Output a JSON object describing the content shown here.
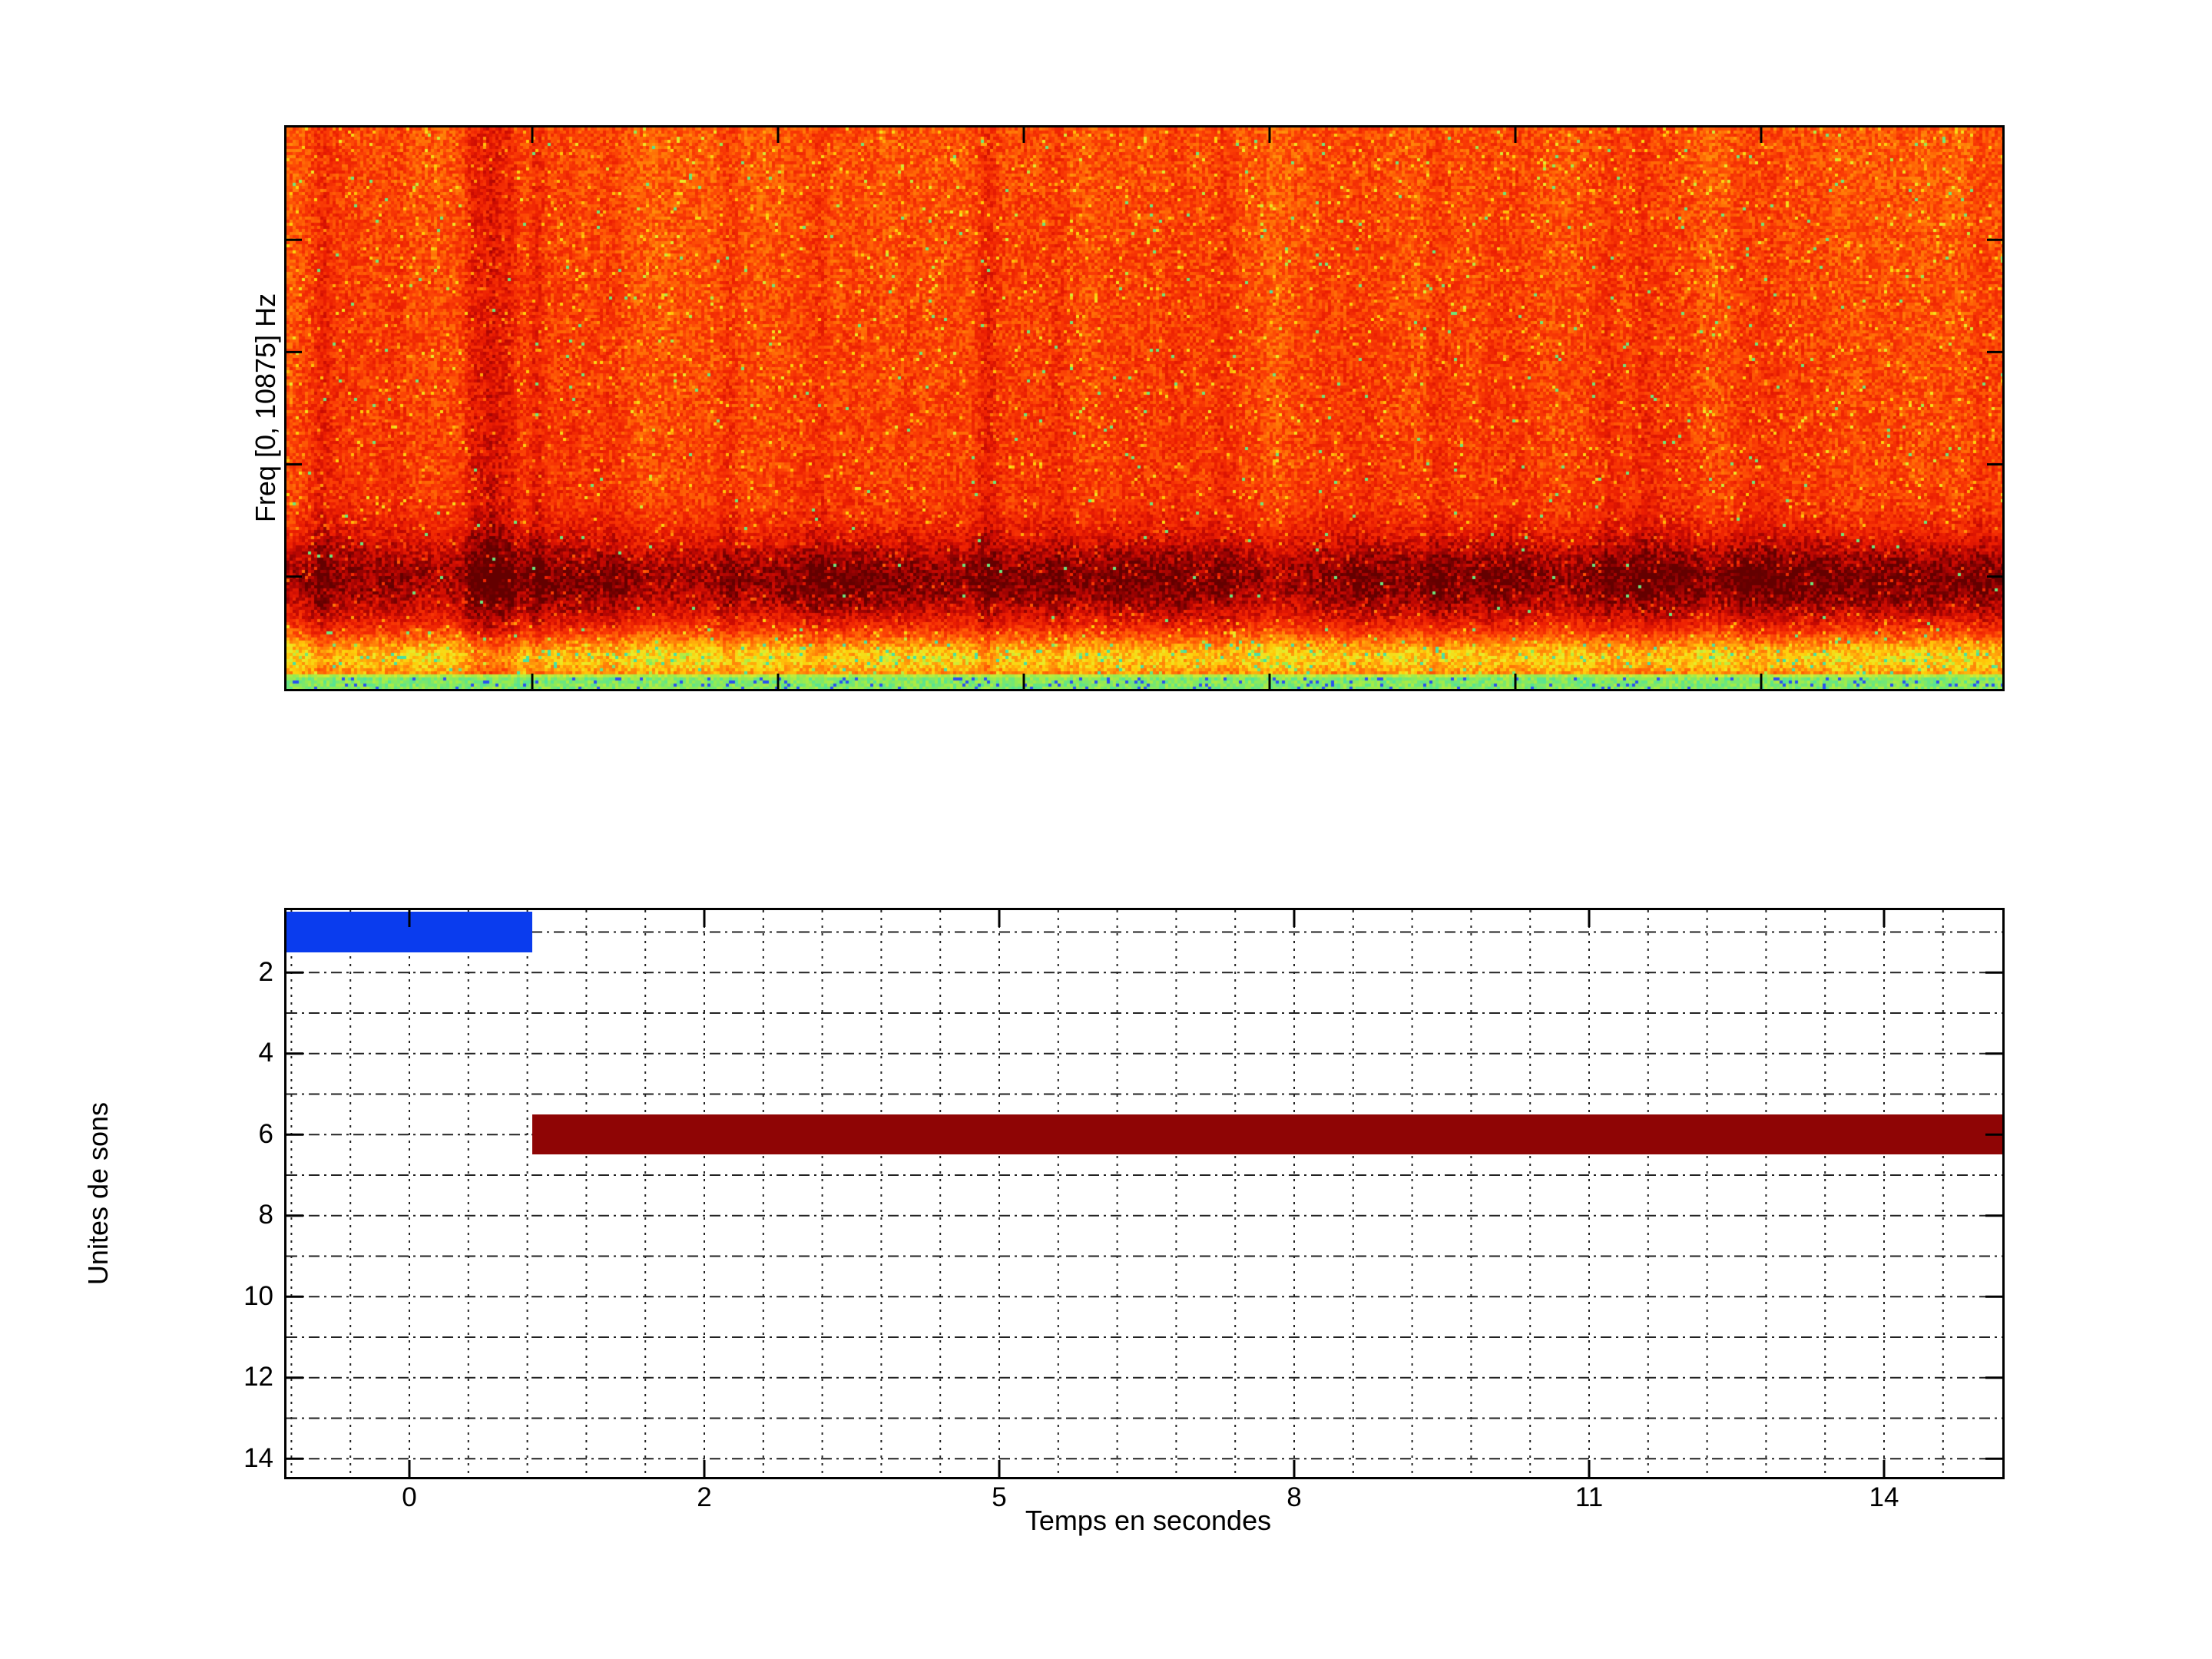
{
  "figure": {
    "background": "#ffffff"
  },
  "spectrogram": {
    "ylabel": "Freq [0, 10875] Hz",
    "freq_range_hz": [
      0,
      10875
    ],
    "colormap_stops": [
      [
        0.0,
        "#46E1A5"
      ],
      [
        0.06,
        "#96EB50"
      ],
      [
        0.12,
        "#EBEB28"
      ],
      [
        0.22,
        "#FFCD0A"
      ],
      [
        0.32,
        "#FF960A"
      ],
      [
        0.45,
        "#FF6405"
      ],
      [
        0.55,
        "#FA3C05"
      ],
      [
        0.68,
        "#EB1E02"
      ],
      [
        0.8,
        "#C80A02"
      ],
      [
        0.9,
        "#960202"
      ],
      [
        1.0,
        "#640000"
      ]
    ]
  },
  "units_plot": {
    "xlabel": "Temps en secondes",
    "ylabel": "Unites de sons",
    "x_tick_labels": [
      "0",
      "2",
      "5",
      "8",
      "11",
      "14"
    ],
    "y_tick_labels": [
      "2",
      "4",
      "6",
      "8",
      "10",
      "12",
      "14"
    ],
    "bars": [
      {
        "sound_unit": 1,
        "t_start_s": -0.83,
        "t_end_s": 0.83,
        "color": "#0A3CEE"
      },
      {
        "sound_unit": 6,
        "t_start_s": 0.83,
        "t_end_s": 15.2,
        "color": "#8F0505"
      }
    ]
  },
  "chart_data": [
    {
      "type": "heatmap",
      "subplot": "top",
      "title": "",
      "ylabel": "Freq [0, 10875] Hz",
      "y_range_hz": [
        0,
        10875
      ],
      "x_range_s": [
        -0.83,
        15.2
      ],
      "legend": "none",
      "grid": false,
      "description": "Audio spectrogram, jet colormap, dominated by high energy orange-red noise across the band; a darker deep-red high-energy horizontal band in the lower quarter of the frequency axis; a bright yellow mottled band just above the lowest frequencies; a thin cyan-green row at the very lowest frequencies; faint dark vertical streaks near x-fractions 0.02, 0.11, 0.12, 0.13, 0.15, 0.26, 0.31, 0.41, 0.77, 0.79, 0.99 of the time axis"
    },
    {
      "type": "bar",
      "subplot": "bottom",
      "orientation": "horizontal-gantt",
      "xlabel": "Temps en secondes",
      "ylabel": "Unites de sons",
      "x_ticks": [
        0,
        2,
        5,
        8,
        11,
        14
      ],
      "y_ticks": [
        2,
        4,
        6,
        8,
        10,
        12,
        14
      ],
      "ylim": [
        0.5,
        14.5
      ],
      "y_axis_direction": "reversed",
      "grid": "dotted, vertical minor lines every 1/5 major interval, horizontal lines at every integer unit",
      "segments": [
        {
          "sound_unit": 1,
          "t_start_s": -0.83,
          "t_end_s": 0.83,
          "color": "#0A3CEE"
        },
        {
          "sound_unit": 6,
          "t_start_s": 0.83,
          "t_end_s": 15.2,
          "color": "#8F0505"
        }
      ]
    }
  ]
}
